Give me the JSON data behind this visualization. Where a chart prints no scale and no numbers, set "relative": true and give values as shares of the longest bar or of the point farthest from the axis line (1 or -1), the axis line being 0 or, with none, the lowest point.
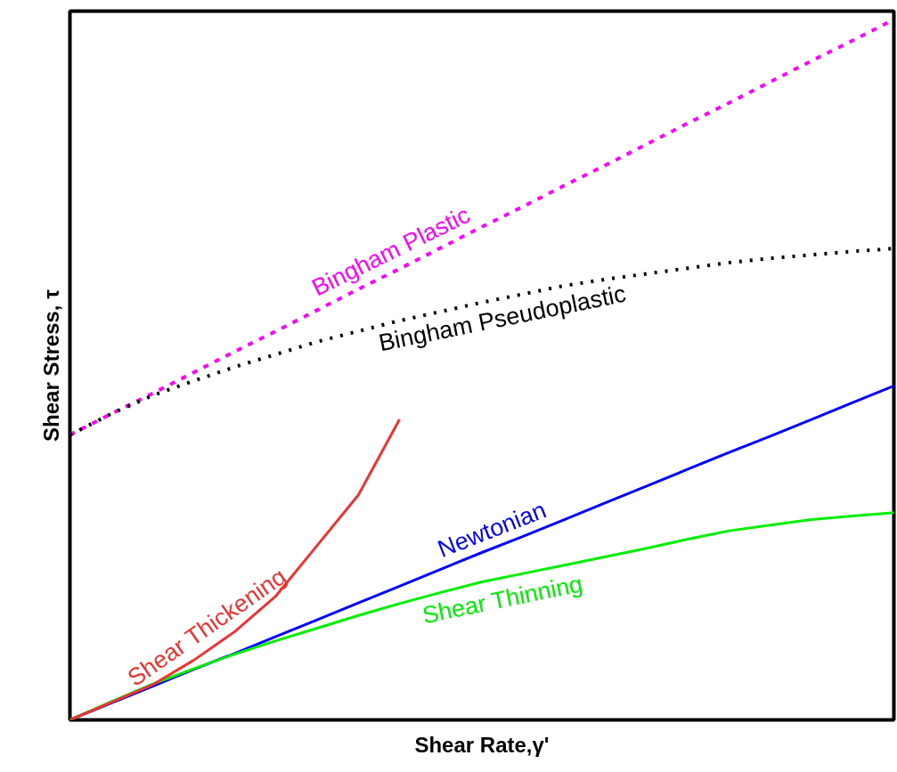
{
  "chart_data": {
    "type": "line",
    "relative": true,
    "xlabel": "Shear Rate,γ'",
    "ylabel": "Shear Stress, τ",
    "categories": [
      null,
      null,
      null,
      null,
      null,
      null,
      null,
      null,
      null,
      null,
      null,
      null,
      null,
      null,
      null,
      null,
      null,
      null,
      null,
      null,
      null
    ],
    "series": [
      {
        "name": "Bingham Plastic",
        "color": "#ff00ff",
        "line_style": "dashed",
        "values": [
          0.407,
          0.437,
          0.466,
          0.496,
          0.526,
          0.555,
          0.585,
          0.615,
          0.644,
          0.674,
          0.704,
          0.733,
          0.763,
          0.792,
          0.822,
          0.852,
          0.881,
          0.911,
          0.941,
          0.97,
          1.0
        ]
      },
      {
        "name": "Bingham Pseudoplastic",
        "color": "#000000",
        "line_style": "dotted",
        "values": [
          0.407,
          0.437,
          0.463,
          0.484,
          0.504,
          0.522,
          0.54,
          0.555,
          0.57,
          0.583,
          0.596,
          0.608,
          0.62,
          0.629,
          0.637,
          0.645,
          0.653,
          0.659,
          0.664,
          0.669,
          0.673
        ]
      },
      {
        "name": "Newtonian",
        "color": "#0000ff",
        "line_style": "solid",
        "values": [
          0,
          0.024,
          0.048,
          0.072,
          0.095,
          0.119,
          0.143,
          0.167,
          0.191,
          0.215,
          0.239,
          0.262,
          0.286,
          0.31,
          0.334,
          0.358,
          0.382,
          0.405,
          0.429,
          0.453,
          0.477
        ]
      },
      {
        "name": "Shear Thinning",
        "color": "#00ee00",
        "line_style": "solid",
        "values": [
          0,
          0.026,
          0.051,
          0.073,
          0.094,
          0.113,
          0.131,
          0.149,
          0.166,
          0.182,
          0.197,
          0.209,
          0.221,
          0.233,
          0.245,
          0.258,
          0.27,
          0.278,
          0.286,
          0.291,
          0.296
        ]
      },
      {
        "name": "Shear Thickening",
        "color": "#ee3333",
        "line_style": "solid",
        "values": [
          0,
          0.025,
          0.05,
          0.085,
          0.126,
          0.177,
          0.249,
          0.321,
          0.429,
          null,
          null,
          null,
          null,
          null,
          null,
          null,
          null,
          null,
          null,
          null,
          null
        ]
      }
    ]
  }
}
